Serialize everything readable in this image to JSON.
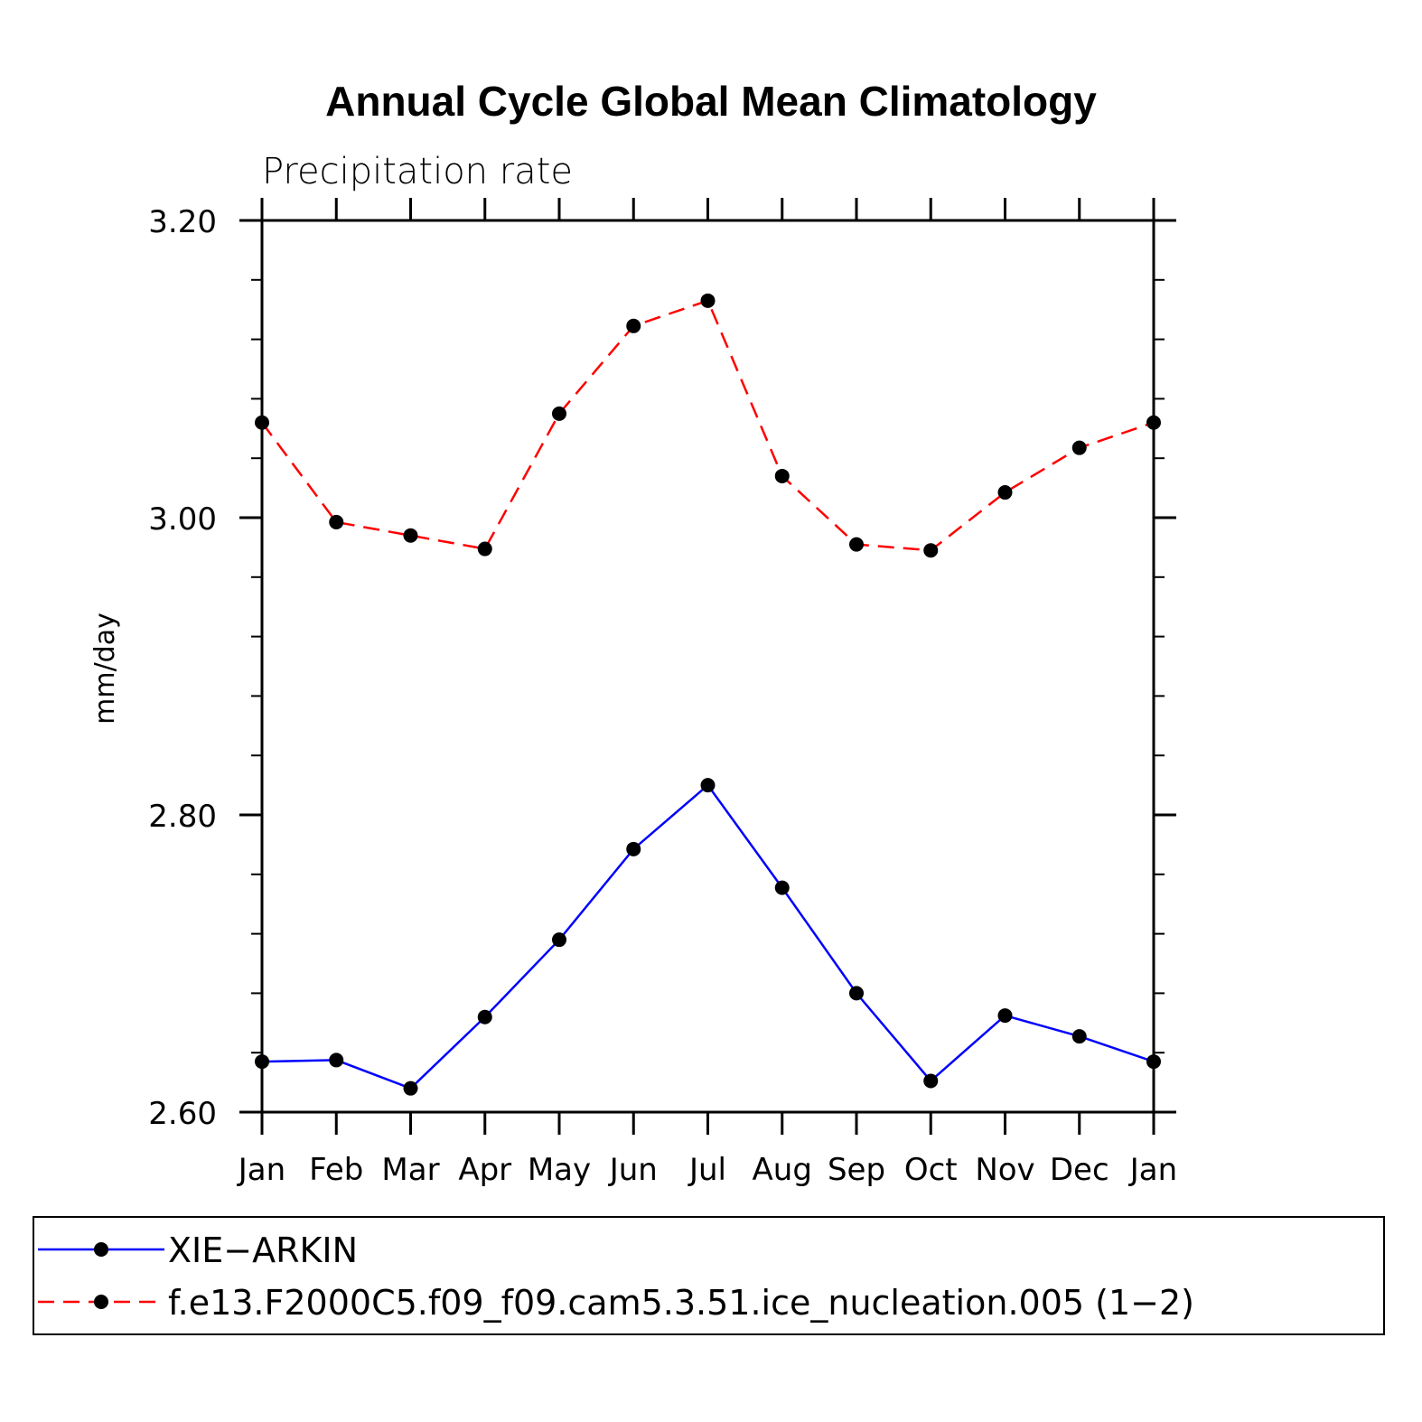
{
  "chart_data": {
    "type": "line",
    "title": "Annual Cycle Global Mean Climatology",
    "subtitle": "Precipitation rate",
    "xlabel": "",
    "ylabel": "mm/day",
    "ylim": [
      2.6,
      3.2
    ],
    "yticks": [
      "3.20",
      "3.00",
      "2.80",
      "2.60"
    ],
    "ytick_values": [
      3.2,
      3.0,
      2.8,
      2.6
    ],
    "categories": [
      "Jan",
      "Feb",
      "Mar",
      "Apr",
      "May",
      "Jun",
      "Jul",
      "Aug",
      "Sep",
      "Oct",
      "Nov",
      "Dec",
      "Jan"
    ],
    "series": [
      {
        "name": "XIE−ARKIN",
        "color": "#0000ff",
        "dash": "solid",
        "values": [
          2.634,
          2.635,
          2.616,
          2.664,
          2.716,
          2.777,
          2.82,
          2.751,
          2.68,
          2.621,
          2.665,
          2.651,
          2.634
        ]
      },
      {
        "name": "f.e13.F2000C5.f09_f09.cam5.3.51.ice_nucleation.005 (1−2)",
        "color": "#ff0000",
        "dash": "dashed",
        "values": [
          3.064,
          2.997,
          2.988,
          2.979,
          3.07,
          3.129,
          3.146,
          3.028,
          2.982,
          2.978,
          3.017,
          3.047,
          3.064
        ]
      }
    ],
    "legend": [
      "XIE−ARKIN",
      "f.e13.F2000C5.f09_f09.cam5.3.51.ice_nucleation.005 (1−2)"
    ]
  }
}
